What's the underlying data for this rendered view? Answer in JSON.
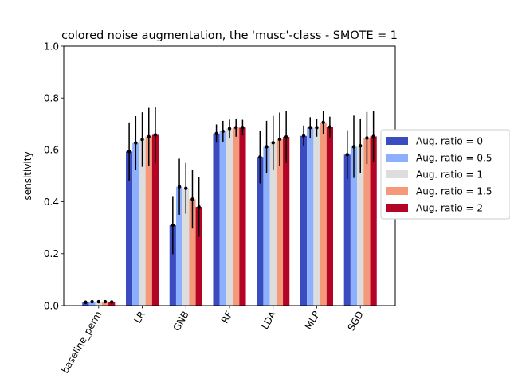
{
  "chart_data": {
    "type": "bar",
    "title": "colored noise augmentation, the 'musc'-class - SMOTE = 1",
    "xlabel": "",
    "ylabel": "sensitivity",
    "ylim": [
      0.0,
      1.0
    ],
    "yticks": [
      "0.0",
      "0.2",
      "0.4",
      "0.6",
      "0.8",
      "1.0"
    ],
    "categories": [
      "baseline_perm",
      "LR",
      "GNB",
      "RF",
      "LDA",
      "MLP",
      "SGD"
    ],
    "grid": false,
    "legend_position": "right",
    "series": [
      {
        "name": "Aug. ratio = 0",
        "color": "#3b4cc0",
        "values": [
          0.013,
          0.594,
          0.31,
          0.663,
          0.573,
          0.654,
          0.582
        ],
        "errors": [
          0.004,
          0.112,
          0.112,
          0.035,
          0.102,
          0.04,
          0.094
        ]
      },
      {
        "name": "Aug. ratio = 0.5",
        "color": "#8db0fe",
        "values": [
          0.015,
          0.627,
          0.458,
          0.672,
          0.612,
          0.686,
          0.612
        ],
        "errors": [
          0.004,
          0.103,
          0.108,
          0.04,
          0.1,
          0.04,
          0.12
        ]
      },
      {
        "name": "Aug. ratio = 1",
        "color": "#dddddd",
        "values": [
          0.015,
          0.64,
          0.452,
          0.682,
          0.628,
          0.686,
          0.616
        ],
        "errors": [
          0.004,
          0.105,
          0.098,
          0.035,
          0.103,
          0.035,
          0.105
        ]
      },
      {
        "name": "Aug. ratio = 1.5",
        "color": "#f49a7b",
        "values": [
          0.015,
          0.651,
          0.41,
          0.686,
          0.641,
          0.706,
          0.646
        ],
        "errors": [
          0.004,
          0.111,
          0.113,
          0.035,
          0.103,
          0.045,
          0.1
        ]
      },
      {
        "name": "Aug. ratio = 2",
        "color": "#b40426",
        "values": [
          0.014,
          0.658,
          0.38,
          0.686,
          0.65,
          0.688,
          0.652
        ],
        "errors": [
          0.004,
          0.108,
          0.115,
          0.03,
          0.1,
          0.04,
          0.098
        ]
      }
    ]
  }
}
